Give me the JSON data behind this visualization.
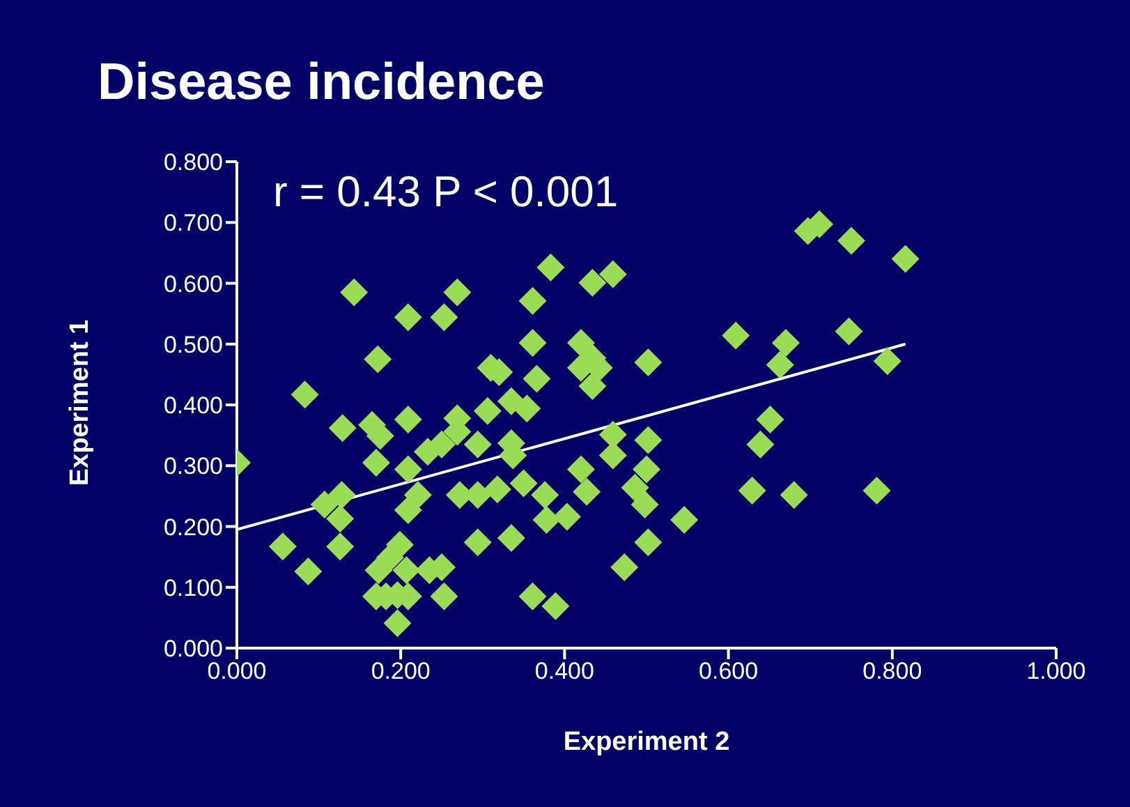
{
  "chart_data": {
    "type": "scatter",
    "title": "Disease incidence",
    "xlabel": "Experiment 2",
    "ylabel": "Experiment 1",
    "annotations": [
      "r = 0.43 P < 0.001"
    ],
    "xlim": [
      0,
      1
    ],
    "ylim": [
      0,
      0.8
    ],
    "xticks": [
      {
        "value": 0,
        "label": "0.000"
      },
      {
        "value": 0.2,
        "label": "0.200"
      },
      {
        "value": 0.4,
        "label": "0.400"
      },
      {
        "value": 0.6,
        "label": "0.600"
      },
      {
        "value": 0.8,
        "label": "0.800"
      },
      {
        "value": 1,
        "label": "1.000"
      }
    ],
    "yticks": [
      {
        "value": 0,
        "label": "0.000"
      },
      {
        "value": 0.1,
        "label": "0.100"
      },
      {
        "value": 0.2,
        "label": "0.200"
      },
      {
        "value": 0.3,
        "label": "0.300"
      },
      {
        "value": 0.4,
        "label": "0.400"
      },
      {
        "value": 0.5,
        "label": "0.500"
      },
      {
        "value": 0.6,
        "label": "0.600"
      },
      {
        "value": 0.7,
        "label": "0.700"
      },
      {
        "value": 0.8,
        "label": "0.800"
      }
    ],
    "marker": "diamond",
    "series": [
      {
        "color": "#99dd55",
        "x": [
          0.0,
          0.056,
          0.087,
          0.083,
          0.129,
          0.143,
          0.172,
          0.165,
          0.175,
          0.17,
          0.107,
          0.128,
          0.126,
          0.126,
          0.209,
          0.209,
          0.209,
          0.221,
          0.209,
          0.199,
          0.187,
          0.173,
          0.207,
          0.17,
          0.182,
          0.196,
          0.209,
          0.196,
          0.235,
          0.25,
          0.253,
          0.253,
          0.269,
          0.233,
          0.25,
          0.269,
          0.269,
          0.294,
          0.272,
          0.294,
          0.318,
          0.294,
          0.306,
          0.31,
          0.32,
          0.335,
          0.354,
          0.335,
          0.337,
          0.35,
          0.335,
          0.361,
          0.389,
          0.361,
          0.383,
          0.361,
          0.366,
          0.376,
          0.378,
          0.403,
          0.42,
          0.434,
          0.459,
          0.42,
          0.434,
          0.442,
          0.434,
          0.459,
          0.459,
          0.42,
          0.427,
          0.486,
          0.498,
          0.502,
          0.473,
          0.502,
          0.502,
          0.5,
          0.697,
          0.711,
          0.75,
          0.816,
          0.609,
          0.67,
          0.747,
          0.663,
          0.794,
          0.651,
          0.639,
          0.546,
          0.629,
          0.68,
          0.781
        ],
        "values": [
          0.305,
          0.167,
          0.126,
          0.417,
          0.362,
          0.585,
          0.475,
          0.367,
          0.349,
          0.305,
          0.236,
          0.252,
          0.213,
          0.167,
          0.544,
          0.376,
          0.294,
          0.252,
          0.227,
          0.17,
          0.149,
          0.128,
          0.128,
          0.085,
          0.085,
          0.087,
          0.085,
          0.041,
          0.128,
          0.133,
          0.085,
          0.544,
          0.585,
          0.323,
          0.335,
          0.378,
          0.356,
          0.335,
          0.252,
          0.252,
          0.261,
          0.174,
          0.39,
          0.461,
          0.454,
          0.406,
          0.394,
          0.337,
          0.317,
          0.271,
          0.181,
          0.085,
          0.069,
          0.571,
          0.626,
          0.502,
          0.443,
          0.252,
          0.211,
          0.216,
          0.502,
          0.601,
          0.615,
          0.461,
          0.477,
          0.461,
          0.431,
          0.351,
          0.317,
          0.294,
          0.257,
          0.264,
          0.236,
          0.174,
          0.133,
          0.47,
          0.342,
          0.294,
          0.686,
          0.697,
          0.67,
          0.64,
          0.514,
          0.502,
          0.521,
          0.466,
          0.472,
          0.376,
          0.335,
          0.211,
          0.259,
          0.252,
          0.259
        ]
      },
      {
        "type": "line",
        "color": "#ffffff",
        "marker": "none",
        "x": [
          0,
          0.816
        ],
        "values": [
          0.195,
          0.5
        ]
      }
    ]
  }
}
